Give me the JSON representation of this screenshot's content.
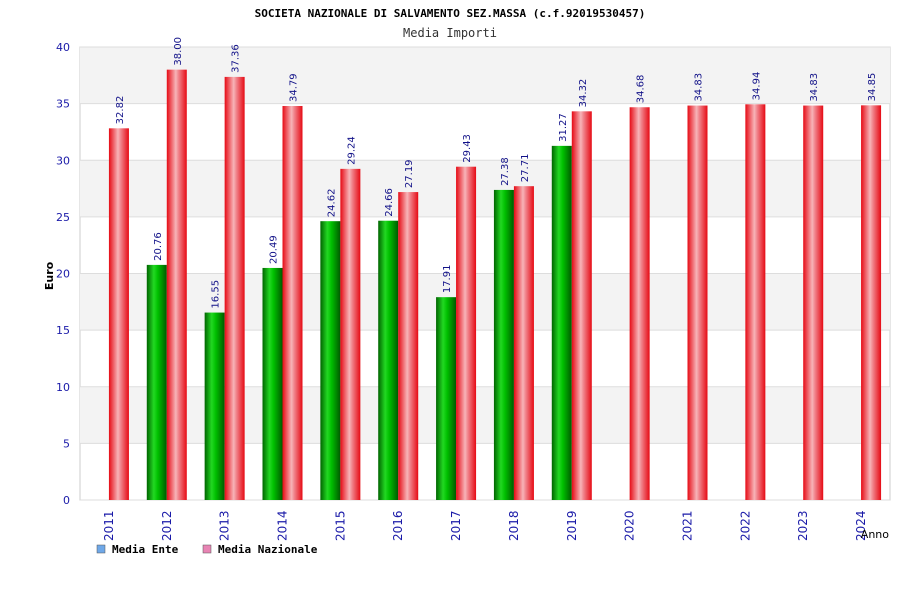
{
  "chart_data": {
    "type": "bar",
    "title": "SOCIETA NAZIONALE DI SALVAMENTO SEZ.MASSA (c.f.92019530457)",
    "subtitle": "Media Importi",
    "ylabel": "Euro",
    "xlabel": "Anno",
    "ylim": [
      0,
      40
    ],
    "yticks": [
      "0",
      "5",
      "10",
      "15",
      "20",
      "25",
      "30",
      "35",
      "40"
    ],
    "categories": [
      "2011",
      "2012",
      "2013",
      "2014",
      "2015",
      "2016",
      "2017",
      "2018",
      "2019",
      "2020",
      "2021",
      "2022",
      "2023",
      "2024"
    ],
    "series": [
      {
        "name": "Media Ente",
        "values": [
          null,
          20.76,
          16.55,
          20.49,
          24.62,
          24.66,
          17.91,
          27.38,
          31.27,
          null,
          null,
          null,
          null,
          null
        ],
        "labels": [
          "",
          "20.76",
          "16.55",
          "20.49",
          "24.62",
          "24.66",
          "17.91",
          "27.38",
          "31.27",
          "",
          "",
          "",
          "",
          ""
        ],
        "color": "#00b400",
        "legend_color": "#6fa8e8"
      },
      {
        "name": "Media Nazionale",
        "values": [
          32.82,
          38.0,
          37.36,
          34.79,
          29.24,
          27.19,
          29.43,
          27.71,
          34.32,
          34.68,
          34.83,
          34.94,
          34.83,
          34.85
        ],
        "labels": [
          "32.82",
          "38.00",
          "37.36",
          "34.79",
          "29.24",
          "27.19",
          "29.43",
          "27.71",
          "34.32",
          "34.68",
          "34.83",
          "34.94",
          "34.83",
          "34.85"
        ],
        "color": "#e8141e",
        "legend_color": "#e884b4"
      }
    ],
    "grid": true,
    "legend_position": "bottom-left"
  }
}
